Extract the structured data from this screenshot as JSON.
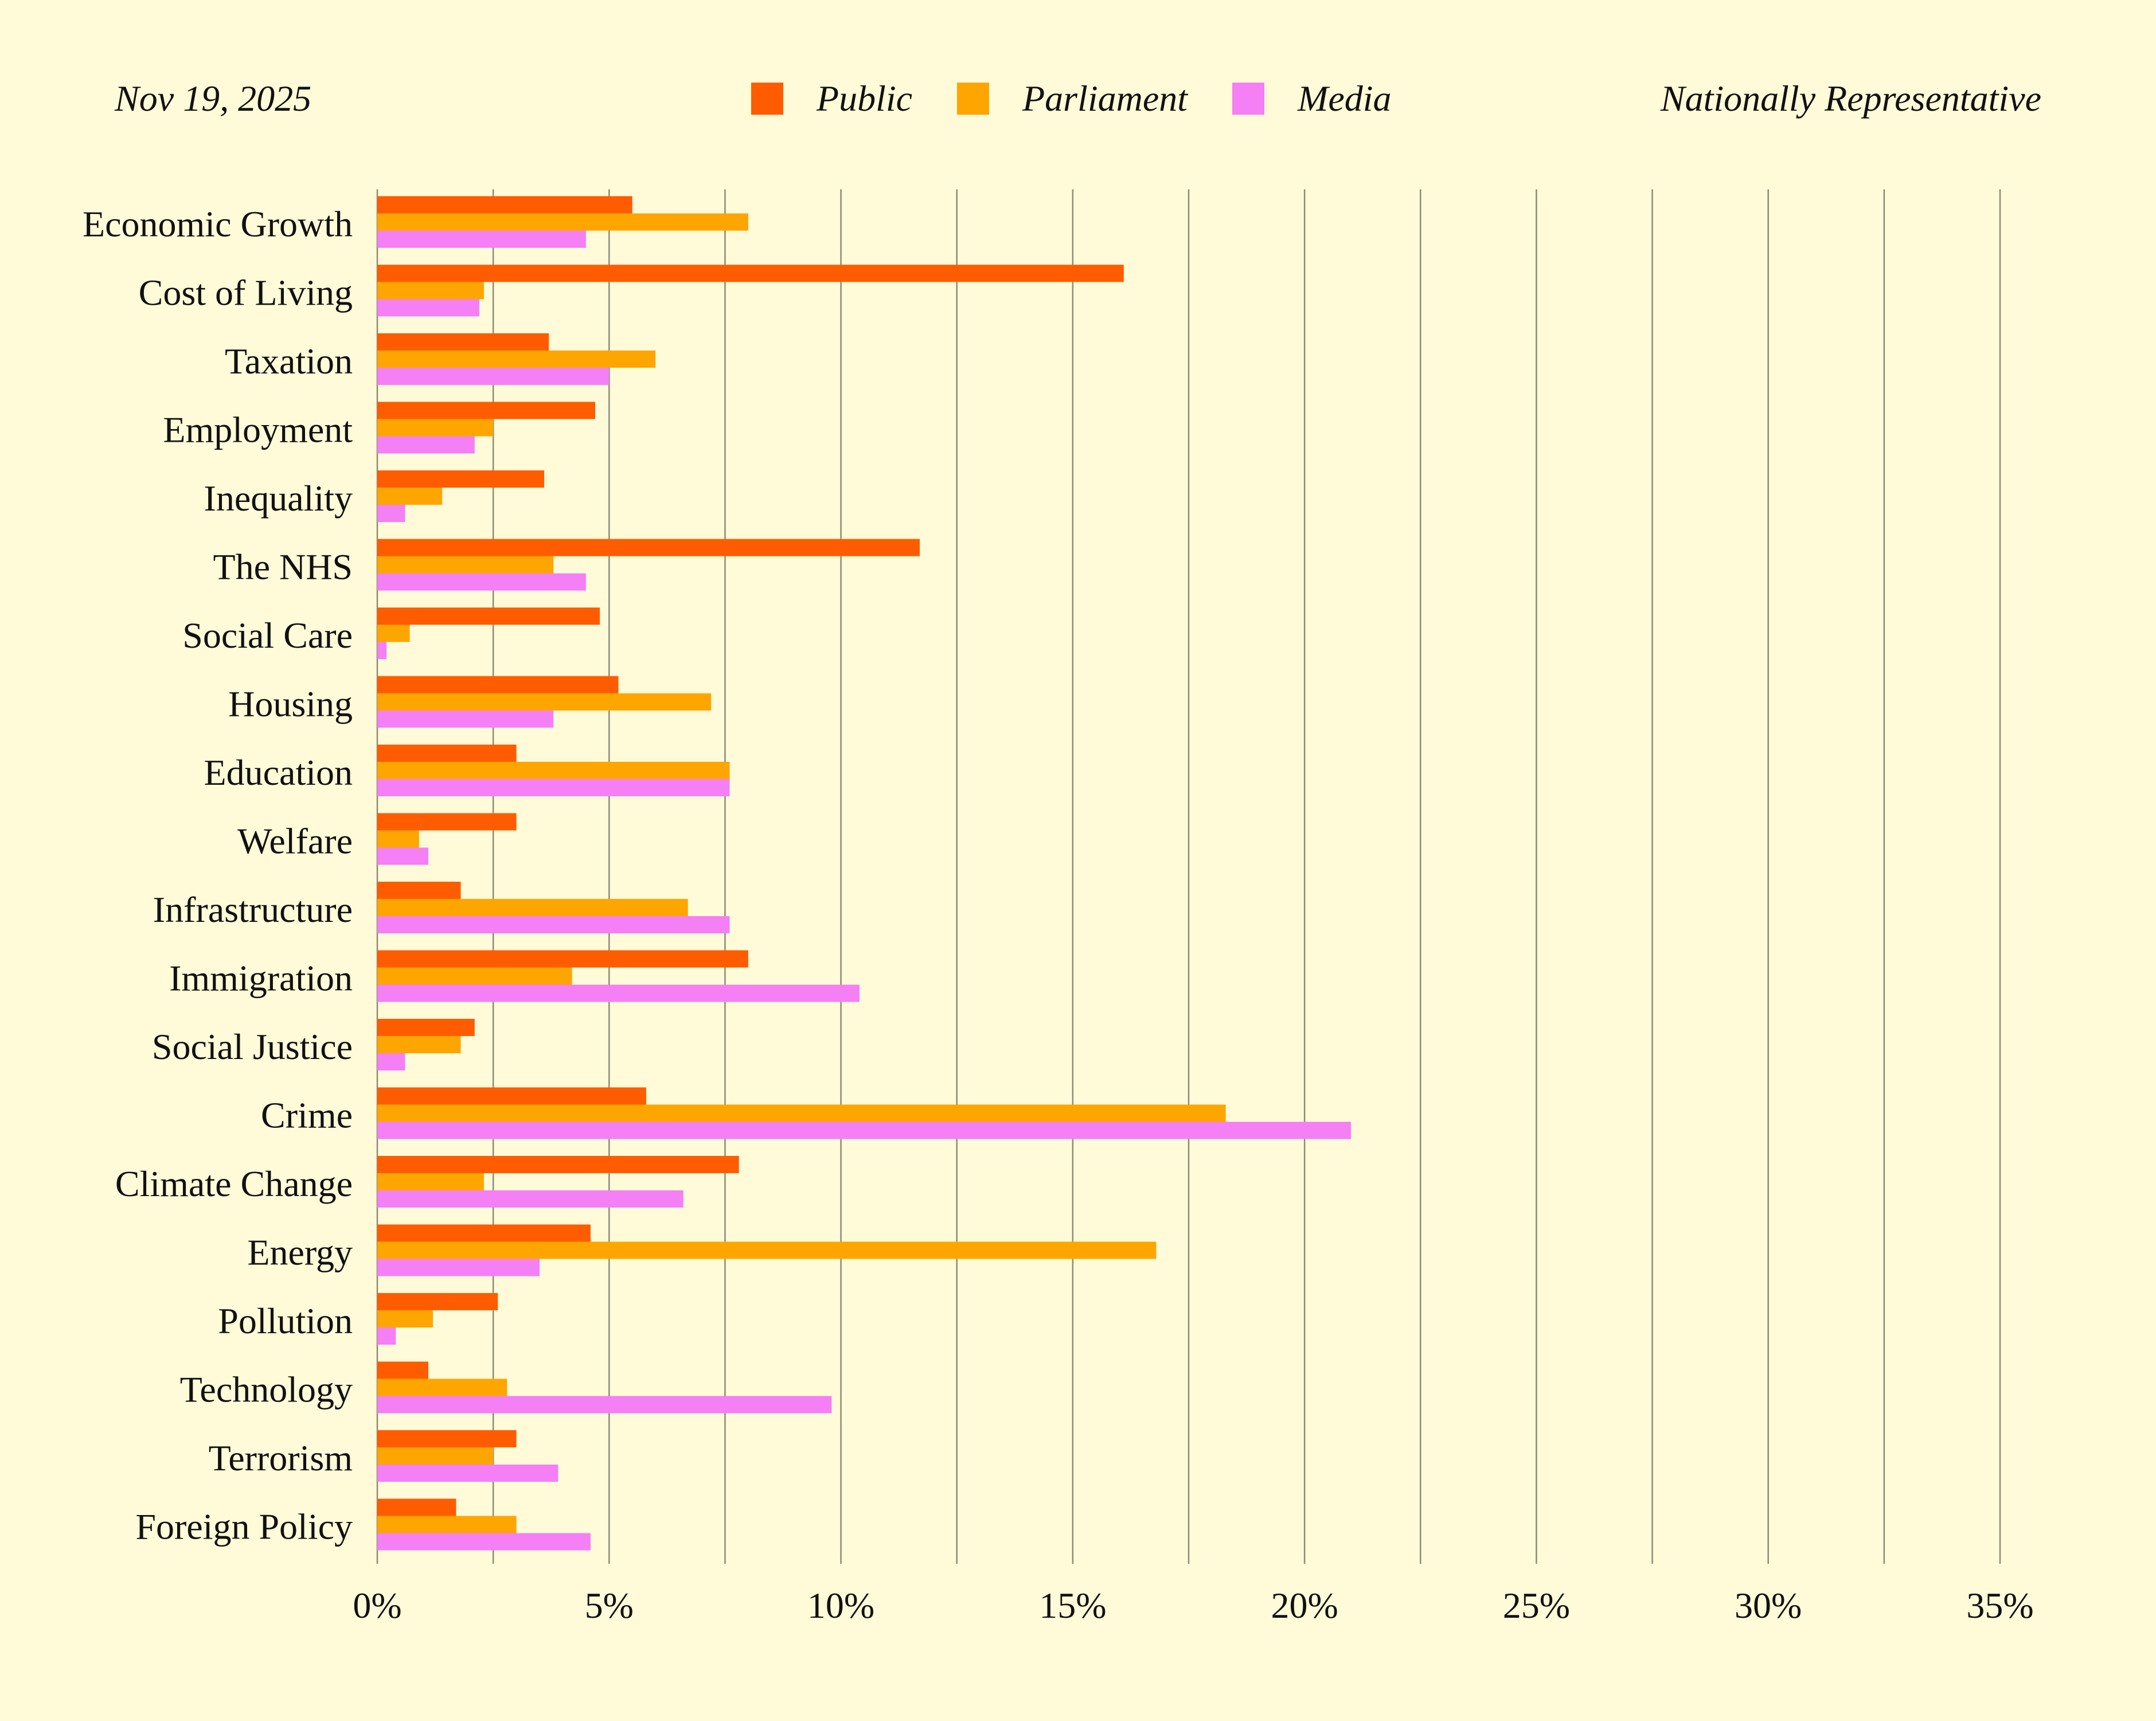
{
  "header": {
    "date": "Nov 19, 2025",
    "note": "Nationally Representative"
  },
  "chart_data": {
    "type": "bar",
    "orientation": "horizontal",
    "legend_position": "top-center",
    "grid": true,
    "xlim": [
      0,
      35
    ],
    "x_ticks": [
      "0%",
      "5%",
      "10%",
      "15%",
      "20%",
      "25%",
      "30%",
      "35%"
    ],
    "categories": [
      "Economic Growth",
      "Cost of Living",
      "Taxation",
      "Employment",
      "Inequality",
      "The NHS",
      "Social Care",
      "Housing",
      "Education",
      "Welfare",
      "Infrastructure",
      "Immigration",
      "Social Justice",
      "Crime",
      "Climate Change",
      "Energy",
      "Pollution",
      "Technology",
      "Terrorism",
      "Foreign Policy"
    ],
    "series": [
      {
        "name": "Public",
        "color": "#ff5c00",
        "values": [
          5.5,
          16.1,
          3.7,
          4.7,
          3.6,
          11.7,
          4.8,
          5.2,
          3.0,
          3.0,
          1.8,
          8.0,
          2.1,
          5.8,
          7.8,
          4.6,
          2.6,
          1.1,
          3.0,
          1.7
        ]
      },
      {
        "name": "Parliament",
        "color": "#ffa500",
        "values": [
          8.0,
          2.3,
          6.0,
          2.5,
          1.4,
          3.8,
          0.7,
          7.2,
          7.6,
          0.9,
          6.7,
          4.2,
          1.8,
          18.3,
          2.3,
          16.8,
          1.2,
          2.8,
          2.5,
          3.0
        ]
      },
      {
        "name": "Media",
        "color": "#f57ff5",
        "values": [
          4.5,
          2.2,
          5.0,
          2.1,
          0.6,
          4.5,
          0.2,
          3.8,
          7.6,
          1.1,
          7.6,
          10.4,
          0.6,
          21.0,
          6.6,
          3.5,
          0.4,
          9.8,
          3.9,
          4.6
        ]
      }
    ]
  }
}
